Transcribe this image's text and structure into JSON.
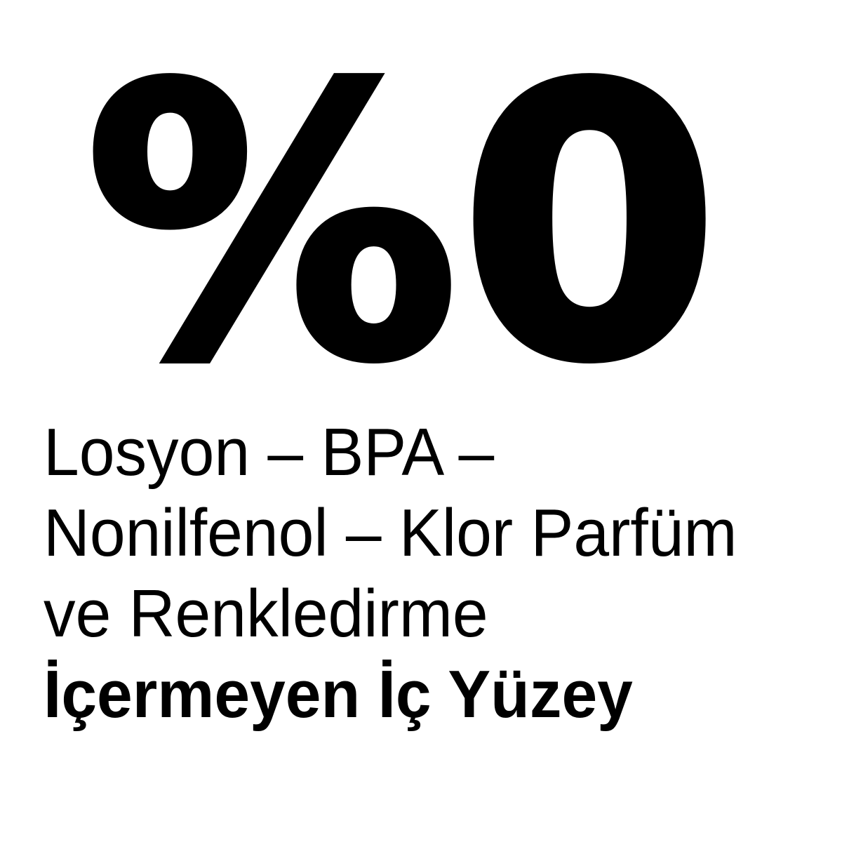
{
  "canvas": {
    "background_color": "#ffffff",
    "text_color": "#000000"
  },
  "headline": {
    "text": "%0"
  },
  "claims": {
    "lines": [
      {
        "text": "Losyon – BPA –",
        "bold": false
      },
      {
        "text": "Nonilfenol – Klor Parfüm",
        "bold": false
      },
      {
        "text": "ve Renkledirme",
        "bold": false
      },
      {
        "text": "İçermeyen İç Yüzey",
        "bold": true
      }
    ]
  }
}
